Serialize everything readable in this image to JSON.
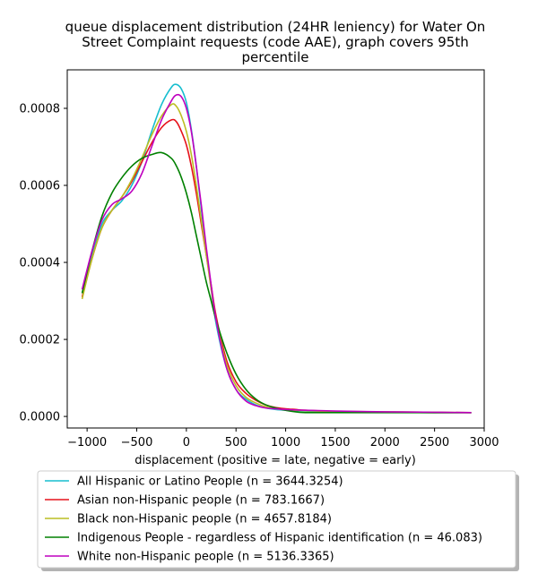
{
  "chart_data": {
    "type": "line",
    "title_lines": [
      "queue displacement distribution (24HR leniency) for Water On",
      "Street Complaint  requests (code AAE), graph covers 95th",
      "percentile"
    ],
    "xlabel": "displacement (positive = late, negative = early)",
    "ylabel": "",
    "xlim": [
      -1200,
      3000
    ],
    "ylim": [
      -3e-05,
      0.0009
    ],
    "x_ticks": [
      -1000,
      -500,
      0,
      500,
      1000,
      1500,
      2000,
      2500,
      3000
    ],
    "x_tick_labels": [
      "−1000",
      "−500",
      "0",
      "500",
      "1000",
      "1500",
      "2000",
      "2500",
      "3000"
    ],
    "y_ticks": [
      0,
      0.0002,
      0.0004,
      0.0006,
      0.0008
    ],
    "y_tick_labels": [
      "0.0000",
      "0.0002",
      "0.0004",
      "0.0006",
      "0.0008"
    ],
    "grid": false,
    "legend_placement": "below",
    "x": [
      -1050,
      -950,
      -850,
      -750,
      -650,
      -550,
      -450,
      -350,
      -250,
      -150,
      -100,
      -50,
      0,
      50,
      100,
      150,
      200,
      250,
      300,
      400,
      500,
      600,
      700,
      800,
      900,
      1000,
      1100,
      1200,
      1500,
      2000,
      2500,
      2870
    ],
    "series": [
      {
        "name": "All Hispanic or Latino People (n = 3644.3254)",
        "color": "#17becf",
        "values": [
          0.00032,
          0.00042,
          0.0005,
          0.000535,
          0.00056,
          0.0006,
          0.00066,
          0.00074,
          0.00081,
          0.000855,
          0.000862,
          0.00085,
          0.000815,
          0.000745,
          0.00065,
          0.00054,
          0.00043,
          0.00033,
          0.00024,
          0.00013,
          7e-05,
          4.5e-05,
          3e-05,
          2.2e-05,
          1.8e-05,
          1.6e-05,
          1.5e-05,
          1.4e-05,
          1.2e-05,
          1.1e-05,
          1e-05,
          1e-05
        ]
      },
      {
        "name": "Asian non-Hispanic people (n = 783.1667)",
        "color": "#e6121b",
        "values": [
          0.00031,
          0.00041,
          0.00049,
          0.000535,
          0.00057,
          0.00061,
          0.00066,
          0.00071,
          0.00075,
          0.00077,
          0.000765,
          0.00074,
          0.000705,
          0.00065,
          0.00058,
          0.0005,
          0.00042,
          0.00034,
          0.00026,
          0.00015,
          9e-05,
          6e-05,
          4.2e-05,
          3e-05,
          2.3e-05,
          2e-05,
          1.8e-05,
          1.6e-05,
          1.3e-05,
          1.1e-05,
          1e-05,
          1e-05
        ]
      },
      {
        "name": "Black non-Hispanic people (n = 4657.8184)",
        "color": "#bcbd22",
        "values": [
          0.000305,
          0.00041,
          0.00049,
          0.000535,
          0.00057,
          0.000615,
          0.00067,
          0.00073,
          0.00078,
          0.00081,
          0.000805,
          0.00078,
          0.00074,
          0.00068,
          0.0006,
          0.00051,
          0.00042,
          0.00033,
          0.00025,
          0.00014,
          8e-05,
          5e-05,
          3.5e-05,
          2.5e-05,
          2e-05,
          1.7e-05,
          1.6e-05,
          1.5e-05,
          1.3e-05,
          1.2e-05,
          1.1e-05,
          1e-05
        ]
      },
      {
        "name": "Indigenous People - regardless of Hispanic identification (n = 46.083)",
        "color": "#008000",
        "values": [
          0.00032,
          0.00043,
          0.00052,
          0.00058,
          0.00062,
          0.00065,
          0.00067,
          0.00068,
          0.000685,
          0.00067,
          0.00065,
          0.00062,
          0.00058,
          0.00053,
          0.00047,
          0.00041,
          0.00035,
          0.0003,
          0.00025,
          0.00017,
          0.00011,
          7e-05,
          4.5e-05,
          3e-05,
          2.2e-05,
          1.6e-05,
          1.2e-05,
          1e-05,
          1e-05,
          1e-05,
          1e-05,
          1e-05
        ]
      },
      {
        "name": "White non-Hispanic people (n = 5136.3365)",
        "color": "#bf00bf",
        "values": [
          0.00033,
          0.00043,
          0.00051,
          0.00055,
          0.000565,
          0.000585,
          0.00063,
          0.0007,
          0.00077,
          0.00082,
          0.000835,
          0.00083,
          0.0008,
          0.00074,
          0.00065,
          0.00055,
          0.00044,
          0.00034,
          0.00025,
          0.00013,
          7e-05,
          4e-05,
          2.8e-05,
          2.2e-05,
          2e-05,
          1.8e-05,
          1.7e-05,
          1.6e-05,
          1.4e-05,
          1.2e-05,
          1.1e-05,
          1e-05
        ]
      }
    ]
  }
}
